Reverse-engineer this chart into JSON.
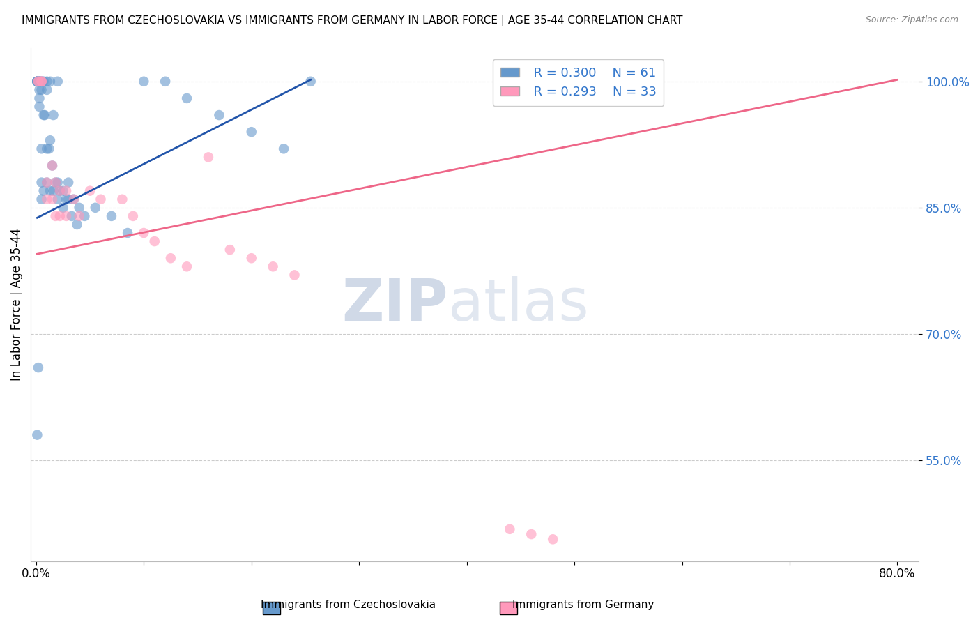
{
  "title": "IMMIGRANTS FROM CZECHOSLOVAKIA VS IMMIGRANTS FROM GERMANY IN LABOR FORCE | AGE 35-44 CORRELATION CHART",
  "source": "Source: ZipAtlas.com",
  "ylabel": "In Labor Force | Age 35-44",
  "yticks": [
    0.55,
    0.7,
    0.85,
    1.0
  ],
  "ytick_labels": [
    "55.0%",
    "70.0%",
    "85.0%",
    "100.0%"
  ],
  "xticks": [
    0.0,
    0.1,
    0.2,
    0.3,
    0.4,
    0.5,
    0.6,
    0.7,
    0.8
  ],
  "xlim": [
    -0.005,
    0.82
  ],
  "ylim": [
    0.43,
    1.04
  ],
  "legend_R_blue": "0.300",
  "legend_N_blue": "61",
  "legend_R_pink": "0.293",
  "legend_N_pink": "33",
  "blue_color": "#6699CC",
  "pink_color": "#FF99BB",
  "blue_line_color": "#2255AA",
  "pink_line_color": "#EE6688",
  "blue_line_x0": 0.001,
  "blue_line_x1": 0.255,
  "blue_line_y0": 0.838,
  "blue_line_y1": 1.002,
  "pink_line_x0": 0.001,
  "pink_line_x1": 0.8,
  "pink_line_y0": 0.795,
  "pink_line_y1": 1.002,
  "blue_scatter_x": [
    0.001,
    0.001,
    0.001,
    0.001,
    0.001,
    0.003,
    0.003,
    0.003,
    0.003,
    0.003,
    0.003,
    0.005,
    0.005,
    0.005,
    0.005,
    0.005,
    0.007,
    0.007,
    0.007,
    0.01,
    0.01,
    0.01,
    0.01,
    0.013,
    0.013,
    0.013,
    0.016,
    0.016,
    0.02,
    0.02,
    0.02,
    0.025,
    0.025,
    0.03,
    0.03,
    0.035,
    0.04,
    0.045,
    0.002,
    0.004,
    0.006,
    0.008,
    0.012,
    0.015,
    0.018,
    0.022,
    0.028,
    0.033,
    0.038,
    0.055,
    0.07,
    0.085,
    0.1,
    0.12,
    0.14,
    0.17,
    0.2,
    0.23,
    0.255,
    0.001,
    0.002
  ],
  "blue_scatter_y": [
    1.0,
    1.0,
    1.0,
    1.0,
    1.0,
    1.0,
    1.0,
    1.0,
    0.99,
    0.98,
    0.97,
    1.0,
    0.99,
    0.92,
    0.88,
    0.86,
    1.0,
    0.96,
    0.87,
    1.0,
    0.99,
    0.92,
    0.88,
    1.0,
    0.93,
    0.87,
    0.96,
    0.87,
    1.0,
    0.88,
    0.86,
    0.87,
    0.85,
    0.88,
    0.86,
    0.86,
    0.85,
    0.84,
    1.0,
    1.0,
    1.0,
    0.96,
    0.92,
    0.9,
    0.88,
    0.87,
    0.86,
    0.84,
    0.83,
    0.85,
    0.84,
    0.82,
    1.0,
    1.0,
    0.98,
    0.96,
    0.94,
    0.92,
    1.0,
    0.58,
    0.66
  ],
  "pink_scatter_x": [
    0.002,
    0.002,
    0.005,
    0.005,
    0.005,
    0.01,
    0.01,
    0.015,
    0.015,
    0.018,
    0.018,
    0.022,
    0.022,
    0.028,
    0.028,
    0.035,
    0.04,
    0.05,
    0.06,
    0.08,
    0.09,
    0.1,
    0.11,
    0.125,
    0.14,
    0.16,
    0.18,
    0.2,
    0.22,
    0.24,
    0.44,
    0.46,
    0.48
  ],
  "pink_scatter_y": [
    1.0,
    1.0,
    1.0,
    1.0,
    1.0,
    0.88,
    0.86,
    0.9,
    0.86,
    0.88,
    0.84,
    0.87,
    0.84,
    0.87,
    0.84,
    0.86,
    0.84,
    0.87,
    0.86,
    0.86,
    0.84,
    0.82,
    0.81,
    0.79,
    0.78,
    0.91,
    0.8,
    0.79,
    0.78,
    0.77,
    0.468,
    0.462,
    0.456
  ]
}
